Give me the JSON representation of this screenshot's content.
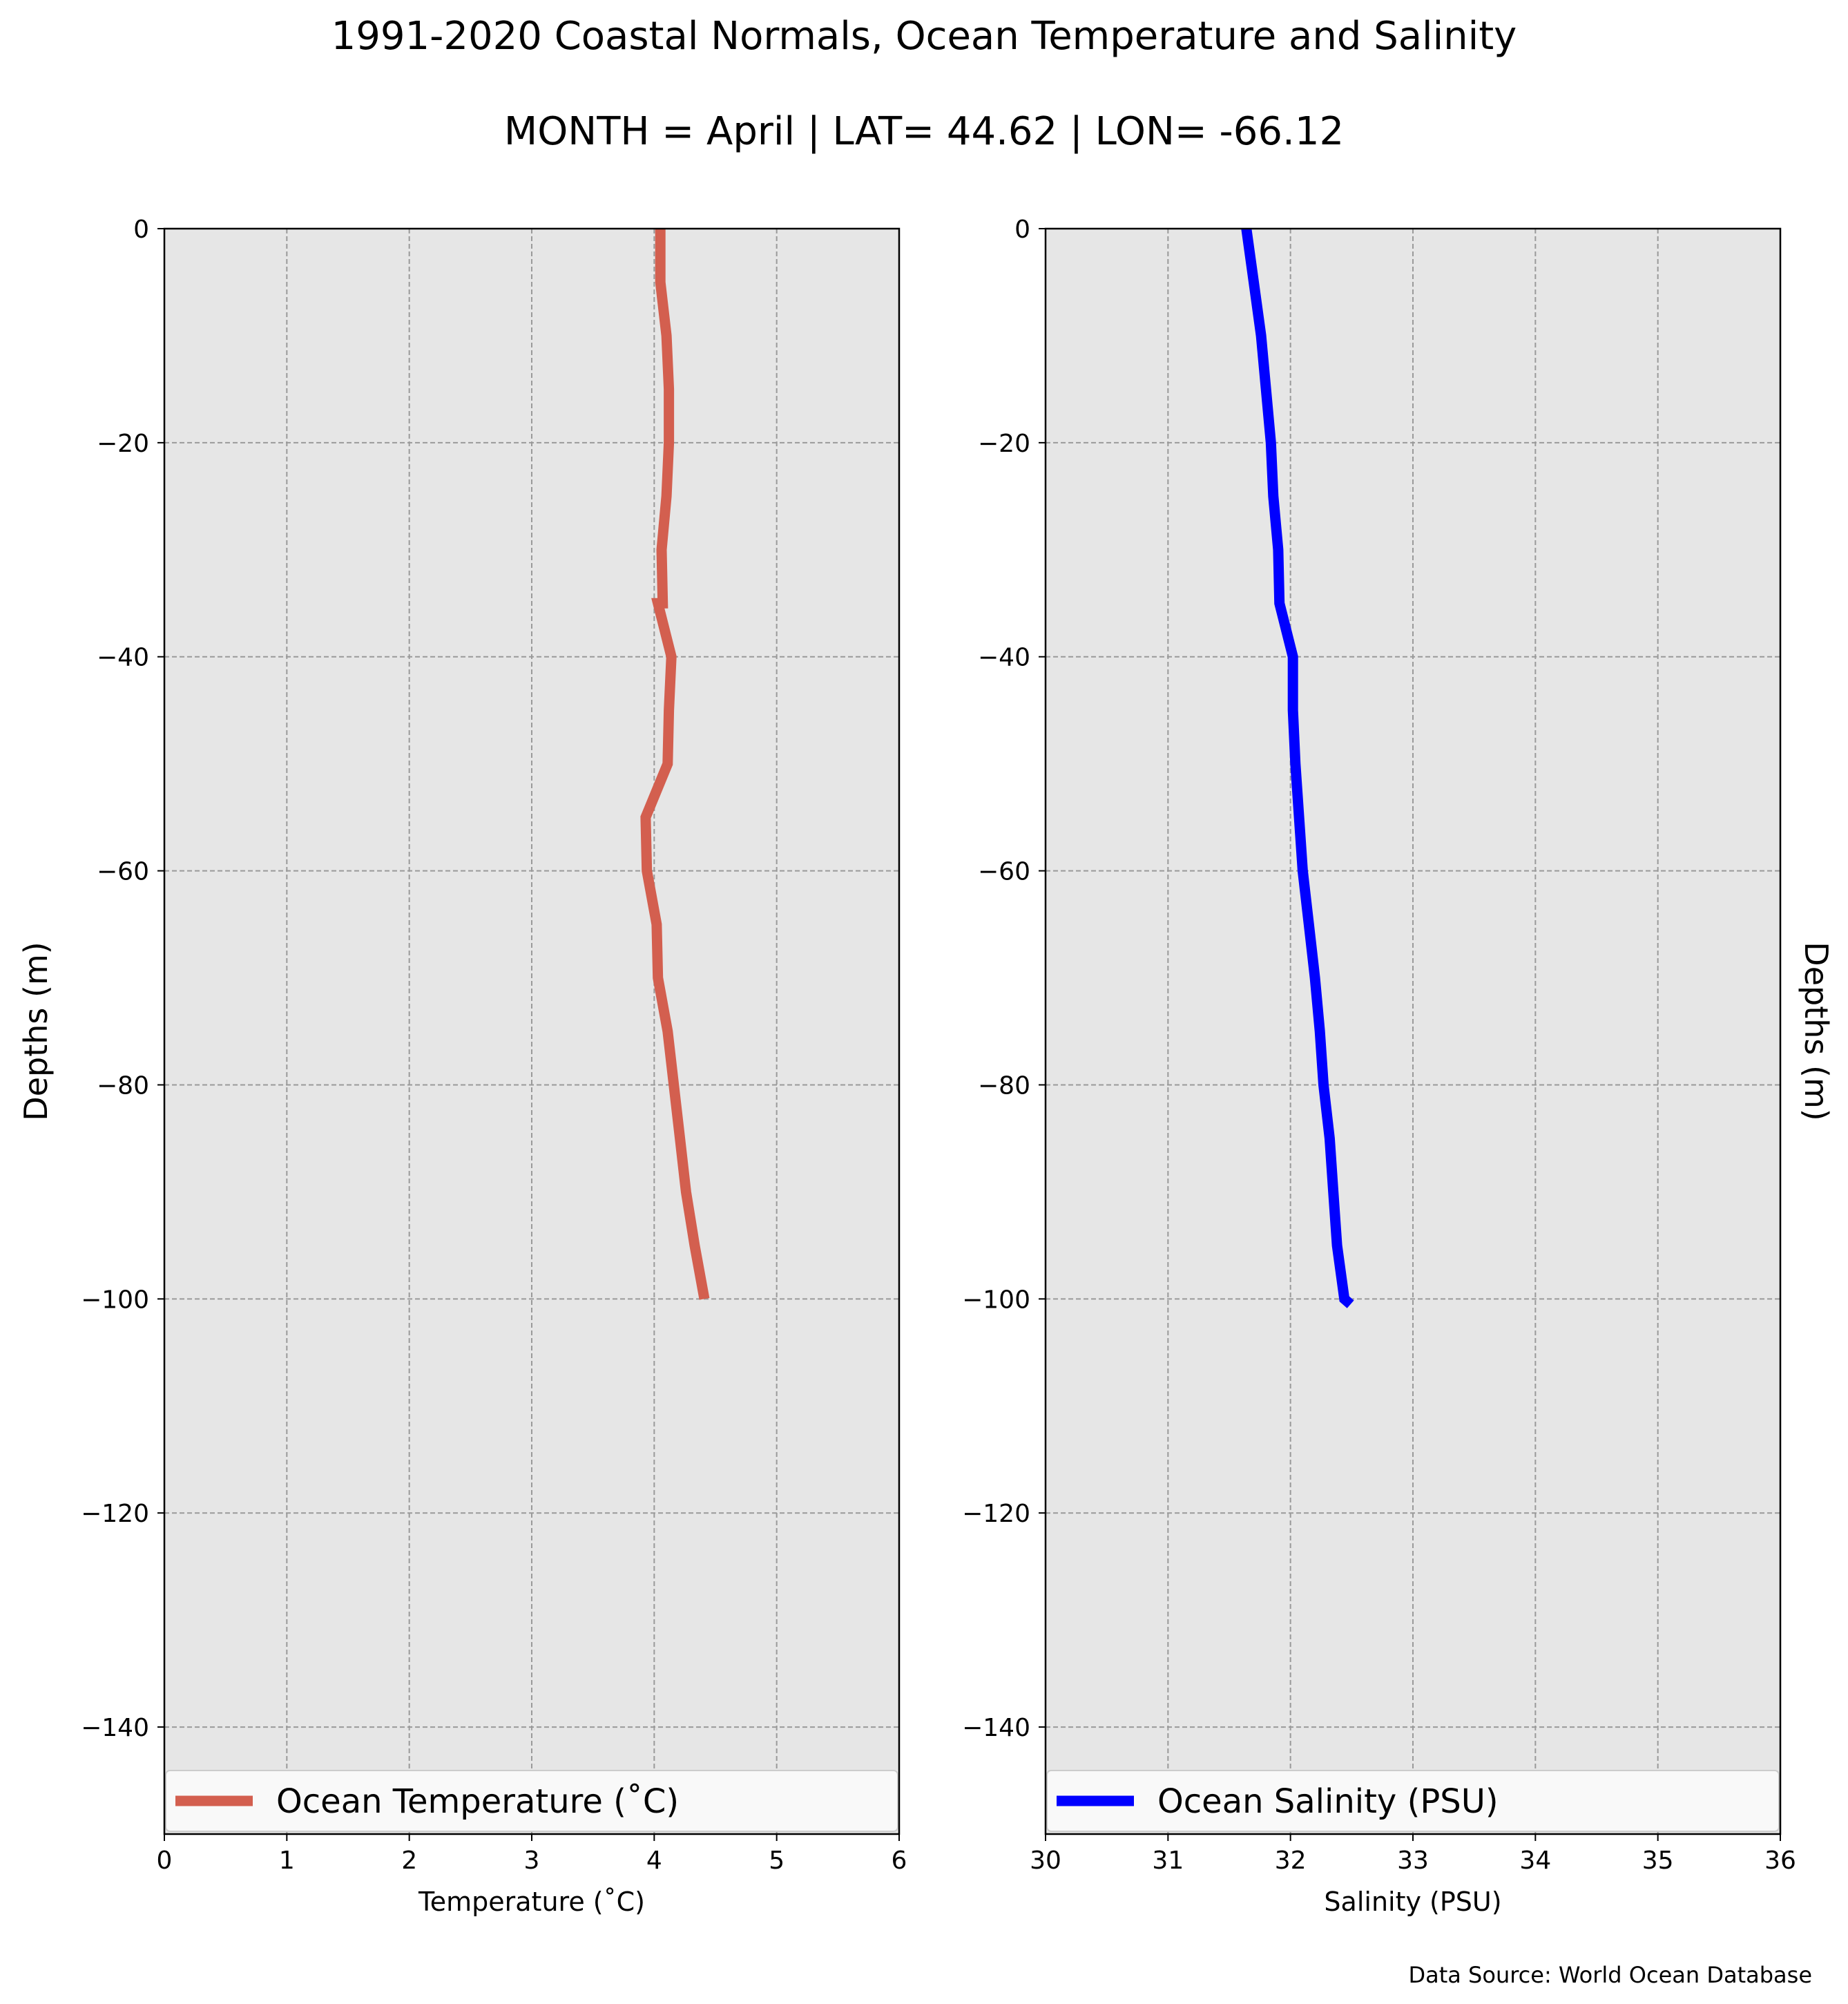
{
  "figure": {
    "title": "1991-2020 Coastal Normals, Ocean Temperature and Salinity",
    "subtitle": "MONTH = April | LAT= 44.62 | LON= -66.12",
    "source": "Data Source: World Ocean Database"
  },
  "chart_data": [
    {
      "type": "line",
      "xlabel": "Temperature ($^\\circ$C)",
      "xlabel_display": "Temperature (˚C)",
      "ylabel": "Depths (m)",
      "xlim": [
        0,
        6
      ],
      "ylim": [
        -150,
        0
      ],
      "xticks": [
        "0",
        "1",
        "2",
        "3",
        "4",
        "5",
        "6"
      ],
      "yticks": [
        "0",
        "−20",
        "−40",
        "−60",
        "−80",
        "−100",
        "−120",
        "−140"
      ],
      "grid": true,
      "legend_position": "lower center",
      "series": [
        {
          "name": "Ocean Temperature (˚C)",
          "color": "#d35f4f",
          "x": [
            4.05,
            4.05,
            4.1,
            4.12,
            4.12,
            4.1,
            4.06,
            4.07,
            4.03,
            4.14,
            4.12,
            4.11,
            3.93,
            3.94,
            4.02,
            4.03,
            4.11,
            4.16,
            4.21,
            4.26,
            4.33,
            4.41
          ],
          "y": [
            0,
            -5,
            -10,
            -15,
            -20,
            -25,
            -30,
            -35,
            -35,
            -40,
            -45,
            -50,
            -55,
            -60,
            -65,
            -70,
            -75,
            -80,
            -85,
            -90,
            -95,
            -100
          ]
        }
      ]
    },
    {
      "type": "line",
      "xlabel": "Salinity (PSU)",
      "ylabel": "Depths (m)",
      "ylabel_side": "right",
      "xlim": [
        30,
        36
      ],
      "ylim": [
        -150,
        0
      ],
      "xticks": [
        "30",
        "31",
        "32",
        "33",
        "34",
        "35",
        "36"
      ],
      "yticks": [
        "0",
        "−20",
        "−40",
        "−60",
        "−80",
        "−100",
        "−120",
        "−140"
      ],
      "grid": true,
      "legend_position": "lower center",
      "series": [
        {
          "name": "Ocean Salinity (PSU)",
          "color": "#0000ff",
          "x": [
            31.64,
            31.7,
            31.76,
            31.8,
            31.84,
            31.86,
            31.9,
            31.91,
            32.02,
            32.02,
            32.04,
            32.07,
            32.1,
            32.15,
            32.2,
            32.24,
            32.27,
            32.32,
            32.35,
            32.38,
            32.44,
            32.49
          ],
          "y": [
            0,
            -5,
            -10,
            -15,
            -20,
            -25,
            -30,
            -35,
            -40,
            -45,
            -50,
            -55,
            -60,
            -65,
            -70,
            -75,
            -80,
            -85,
            -90,
            -95,
            -100,
            -100.5
          ]
        }
      ]
    }
  ]
}
